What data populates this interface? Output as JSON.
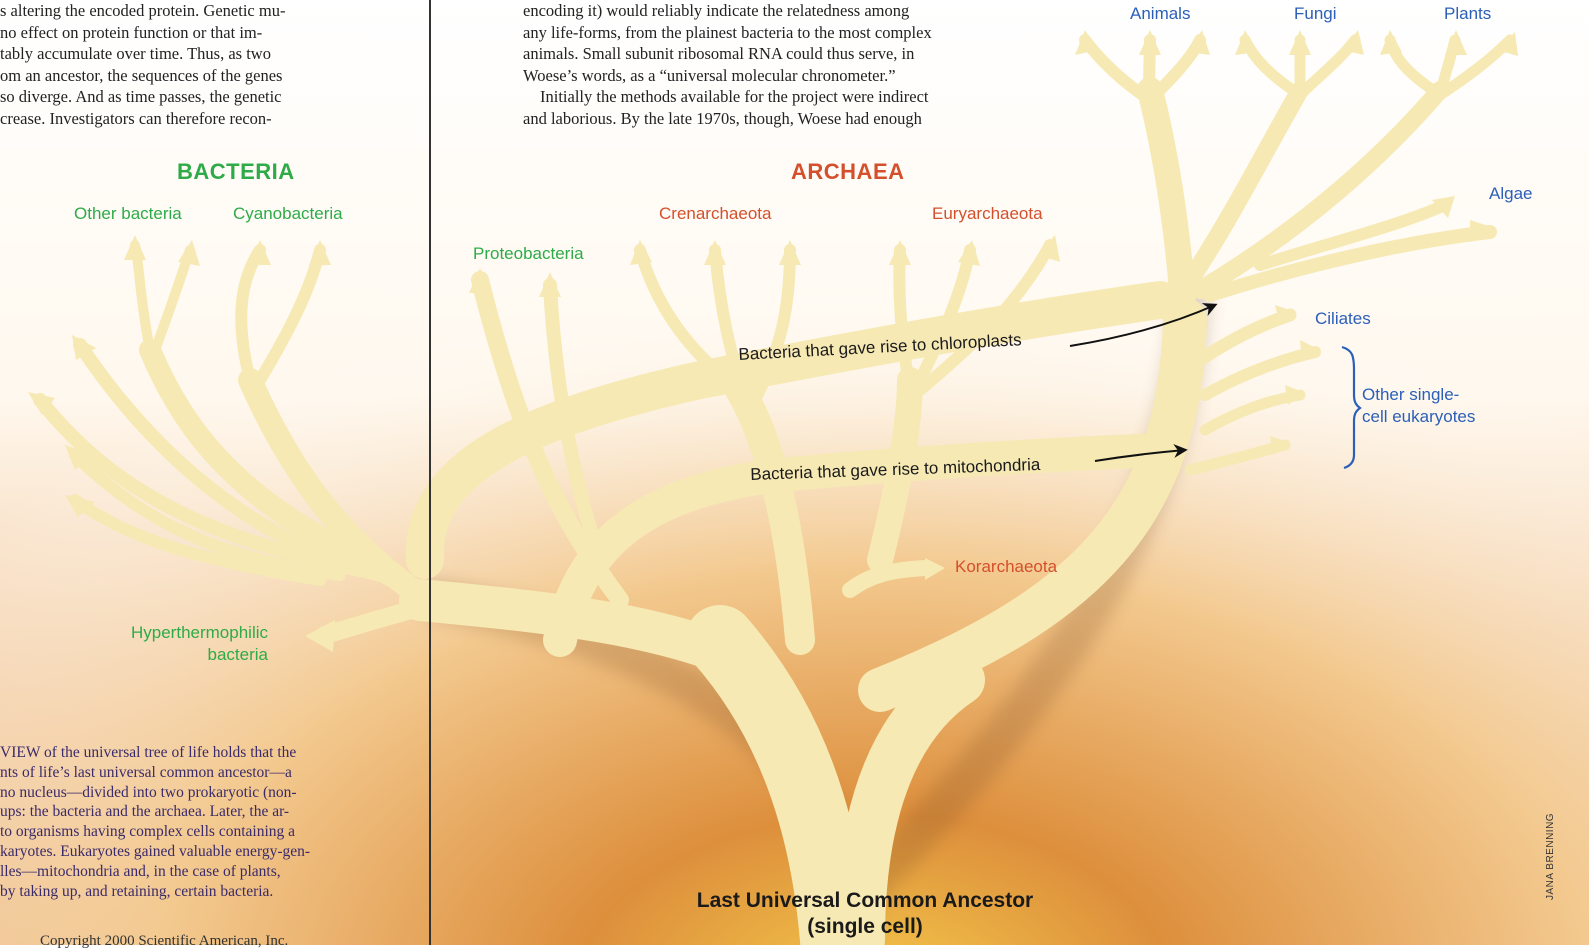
{
  "left_column": {
    "lines": [
      "s altering the encoded protein. Genetic mu-",
      " no effect on protein function or that im-",
      "tably accumulate over time. Thus, as two",
      "om an ancestor, the sequences of the genes",
      "so diverge. And as time passes, the genetic",
      "crease. Investigators can therefore recon-"
    ]
  },
  "right_column": {
    "lines": [
      "encoding it) would reliably indicate the relatedness among",
      "any life-forms, from the plainest bacteria to the most complex",
      "animals. Small subunit ribosomal RNA could thus serve, in",
      "Woese’s words, as a “universal molecular chronometer.”",
      "Initially the methods available for the project were indirect",
      "and laborious. By the late 1970s, though, Woese had enough"
    ]
  },
  "groups": {
    "bacteria": "BACTERIA",
    "archaea": "ARCHAEA"
  },
  "bacteria_labels": {
    "other_bacteria": "Other bacteria",
    "cyanobacteria": "Cyanobacteria",
    "proteobacteria": "Proteobacteria",
    "hyperthermophilic_1": "Hyperthermophilic",
    "hyperthermophilic_2": "bacteria"
  },
  "archaea_labels": {
    "crenarchaeota": "Crenarchaeota",
    "euryarchaeota": "Euryarchaeota",
    "korarchaeota": "Korarchaeota"
  },
  "eukarya_labels": {
    "animals": "Animals",
    "fungi": "Fungi",
    "plants": "Plants",
    "algae": "Algae",
    "ciliates": "Ciliates",
    "other_single_1": "Other single-",
    "other_single_2": "cell eukaryotes"
  },
  "transfers": {
    "chloroplasts": "Bacteria that gave rise to chloroplasts",
    "mitochondria": "Bacteria that gave rise to mitochondria"
  },
  "root": {
    "line1": "Last Universal Common Ancestor",
    "line2": "(single cell)"
  },
  "caption": {
    "lines": [
      "VIEW of the universal tree of life holds that the",
      "nts of life’s last universal common ancestor—a",
      "no nucleus—divided into two prokaryotic (non-",
      "ups: the bacteria and the archaea. Later, the ar-",
      " to organisms having complex cells containing a",
      "karyotes. Eukaryotes gained valuable energy-gen-",
      "lles—mitochondria and, in the case of plants,",
      "by taking up, and retaining, certain bacteria."
    ]
  },
  "copyright": "Copyright 2000 Scientific American, Inc.",
  "credit": "JANA BRENNING",
  "colors": {
    "bacteria": "#2eab48",
    "archaea": "#d4502c",
    "eukarya": "#2b5fb8",
    "branch": "#f6e9b4"
  }
}
